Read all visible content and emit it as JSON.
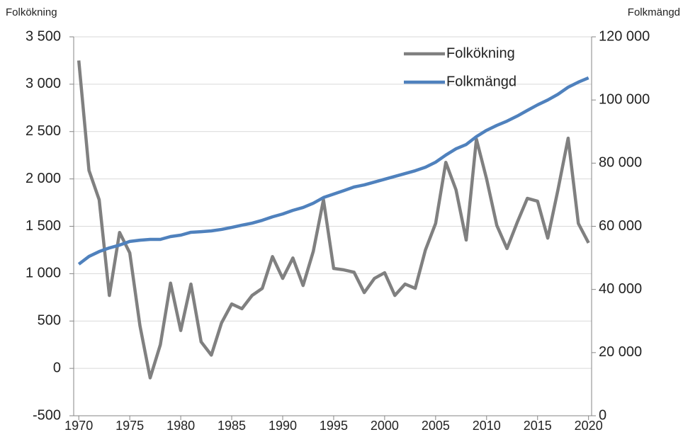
{
  "chart_data": {
    "type": "line",
    "y_label": "Folkökning",
    "y2_label": "Folkmängd",
    "x": [
      1970,
      1971,
      1972,
      1973,
      1974,
      1975,
      1976,
      1977,
      1978,
      1979,
      1980,
      1981,
      1982,
      1983,
      1984,
      1985,
      1986,
      1987,
      1988,
      1989,
      1990,
      1991,
      1992,
      1993,
      1994,
      1995,
      1996,
      1997,
      1998,
      1999,
      2000,
      2001,
      2002,
      2003,
      2004,
      2005,
      2006,
      2007,
      2008,
      2009,
      2010,
      2011,
      2012,
      2013,
      2014,
      2015,
      2016,
      2017,
      2018,
      2019,
      2020
    ],
    "series": [
      {
        "name": "Folkökning",
        "color": "#808080",
        "values": [
          3250,
          2090,
          1780,
          770,
          1435,
          1220,
          450,
          -100,
          250,
          900,
          400,
          890,
          280,
          140,
          480,
          680,
          630,
          770,
          845,
          1180,
          950,
          1165,
          875,
          1235,
          1780,
          1055,
          1040,
          1015,
          800,
          950,
          1010,
          770,
          890,
          845,
          1250,
          1530,
          2175,
          1885,
          1355,
          2420,
          2000,
          1510,
          1265,
          1540,
          1795,
          1765,
          1375,
          1885,
          2430,
          1530,
          1325
        ]
      },
      {
        "name": "Folkmängd",
        "color": "#4f81bd",
        "axis": "y2",
        "values": [
          48000,
          50450,
          52000,
          53150,
          54050,
          55200,
          55600,
          55850,
          55850,
          56750,
          57200,
          58100,
          58300,
          58550,
          59000,
          59650,
          60350,
          61000,
          61900,
          63000,
          63900,
          65050,
          65950,
          67300,
          69100,
          70200,
          71300,
          72450,
          73100,
          74000,
          74900,
          75800,
          76700,
          77600,
          78700,
          80300,
          82550,
          84550,
          85900,
          88400,
          90400,
          91950,
          93300,
          94900,
          96700,
          98450,
          100000,
          101800,
          104050,
          105650,
          107000
        ]
      }
    ],
    "xlim": [
      1969.5,
      2020.3
    ],
    "xticks": [
      1970,
      1975,
      1980,
      1985,
      1990,
      1995,
      2000,
      2005,
      2010,
      2015,
      2020
    ],
    "ylim": [
      -500,
      3500
    ],
    "yticks": [
      -500,
      0,
      500,
      {
        "value": 1000,
        "label": "1 000"
      },
      {
        "value": 1500,
        "label": "1 500"
      },
      {
        "value": 2000,
        "label": "2 000"
      },
      {
        "value": 2500,
        "label": "2 500"
      },
      {
        "value": 3000,
        "label": "3 000"
      },
      {
        "value": 3500,
        "label": "3 500"
      }
    ],
    "y2lim": [
      0,
      120000
    ],
    "y2ticks": [
      0,
      {
        "value": 20000,
        "label": "20 000"
      },
      {
        "value": 40000,
        "label": "40 000"
      },
      {
        "value": 60000,
        "label": "60 000"
      },
      {
        "value": 80000,
        "label": "80 000"
      },
      {
        "value": 100000,
        "label": "100 000"
      },
      {
        "value": 120000,
        "label": "120 000"
      }
    ],
    "grid": true,
    "legend": "upper right"
  }
}
